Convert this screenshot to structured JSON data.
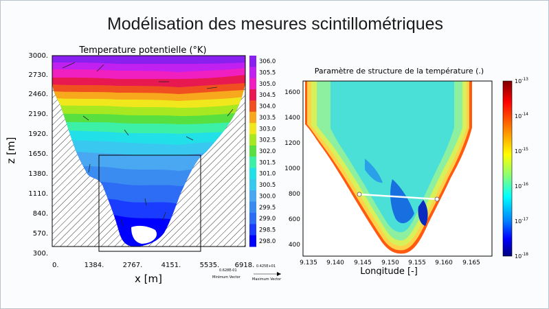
{
  "slide": {
    "title": "Modélisation des mesures scintillométriques"
  },
  "left_chart": {
    "title": "Temperature potentielle (°K)",
    "xlabel": "x [m]",
    "ylabel": "z [m]",
    "x_ticks": [
      "0.",
      "1384.",
      "2767.",
      "4151.",
      "5535.",
      "6918."
    ],
    "y_ticks": [
      "3000.",
      "2730.",
      "2460.",
      "2190.",
      "1920.",
      "1650.",
      "1380.",
      "1110.",
      "840.",
      "570.",
      "300."
    ],
    "colorbar_ticks": [
      "306.0",
      "305.5",
      "305.0",
      "304.5",
      "304.0",
      "303.5",
      "303.0",
      "302.5",
      "302.0",
      "301.5",
      "301.0",
      "300.5",
      "300.0",
      "299.5",
      "299.0",
      "298.5",
      "298.0"
    ],
    "min_vector_value": "0.628E-01",
    "min_vector_label": "Minimum Vector",
    "max_vector_value": "0.425E+01",
    "max_vector_label": "Maximum Vector"
  },
  "right_chart": {
    "title": "Paramètre de structure de la température (.)",
    "xlabel": "Longitude [-]",
    "x_ticks": [
      "9.135",
      "9.140",
      "9.145",
      "9.150",
      "9.155",
      "9.160",
      "9.165"
    ],
    "y_ticks": [
      "1600",
      "1400",
      "1200",
      "1000",
      "800",
      "600",
      "400"
    ],
    "colorbar_ticks": [
      {
        "base": "10",
        "exp": "-13"
      },
      {
        "base": "10",
        "exp": "-14"
      },
      {
        "base": "10",
        "exp": "-15"
      },
      {
        "base": "10",
        "exp": "-16"
      },
      {
        "base": "10",
        "exp": "-17"
      },
      {
        "base": "10",
        "exp": "-18"
      }
    ]
  },
  "chart_data": [
    {
      "type": "heatmap",
      "title": "Temperature potentielle (°K)",
      "xlabel": "x [m]",
      "ylabel": "z [m]",
      "xlim": [
        0,
        6918
      ],
      "ylim": [
        300,
        3000
      ],
      "colorbar_range": [
        298.0,
        306.0
      ],
      "colorbar_ticks": [
        306.0,
        305.5,
        305.0,
        304.5,
        304.0,
        303.5,
        303.0,
        302.5,
        302.0,
        301.5,
        301.0,
        300.5,
        300.0,
        299.5,
        299.0,
        298.5,
        298.0
      ]
    },
    {
      "type": "heatmap",
      "title": "Paramètre de structure de la température (.)",
      "xlabel": "Longitude [-]",
      "xlim": [
        9.133,
        9.168
      ],
      "ylim": [
        300,
        1700
      ],
      "log_color_scale": true,
      "colorbar_range": [
        "1e-18",
        "1e-13"
      ],
      "measurement_path": [
        [
          9.144,
          800
        ],
        [
          9.158,
          750
        ]
      ]
    }
  ],
  "colors": {
    "slide_border": "#b9c2cc",
    "path_line": "#ffffff"
  }
}
